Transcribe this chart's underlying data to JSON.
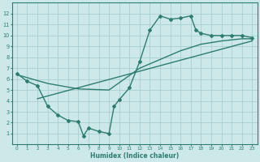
{
  "line1_x": [
    0,
    1,
    2,
    3,
    4,
    5,
    6,
    6.5,
    7,
    8,
    9,
    9.5,
    10,
    11,
    12,
    13,
    14,
    15,
    16,
    17,
    17.5,
    18,
    19,
    20,
    21,
    22,
    23
  ],
  "line1_y": [
    6.5,
    5.8,
    5.4,
    3.5,
    2.7,
    2.2,
    2.1,
    0.8,
    1.5,
    1.2,
    1.0,
    3.5,
    4.1,
    5.2,
    7.6,
    10.5,
    11.8,
    11.5,
    11.6,
    11.8,
    10.5,
    10.2,
    10.0,
    10.0,
    10.0,
    10.0,
    9.8
  ],
  "line2_x": [
    0,
    3,
    6,
    9,
    12,
    14,
    16,
    18,
    20,
    22,
    23
  ],
  "line2_y": [
    6.4,
    5.6,
    5.1,
    5.0,
    7.0,
    7.8,
    8.6,
    9.2,
    9.5,
    9.7,
    9.7
  ],
  "line3_x": [
    2,
    23
  ],
  "line3_y": [
    4.2,
    9.5
  ],
  "color": "#2e7d6e",
  "bg_color": "#cce8e8",
  "grid_color": "#aacece",
  "xlabel": "Humidex (Indice chaleur)",
  "xlim": [
    -0.5,
    23.5
  ],
  "ylim": [
    0,
    13
  ],
  "xticks": [
    0,
    1,
    2,
    3,
    4,
    5,
    6,
    7,
    8,
    9,
    10,
    11,
    12,
    13,
    14,
    15,
    16,
    17,
    18,
    19,
    20,
    21,
    22,
    23
  ],
  "yticks": [
    1,
    2,
    3,
    4,
    5,
    6,
    7,
    8,
    9,
    10,
    11,
    12
  ],
  "marker": "D",
  "markersize": 2,
  "linewidth": 1.0
}
